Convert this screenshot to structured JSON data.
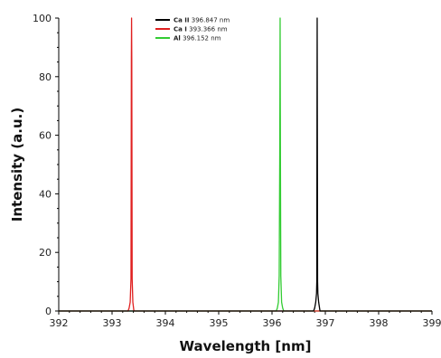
{
  "chart_data": {
    "type": "line",
    "xlabel": "Wavelength [nm]",
    "ylabel": "Intensity (a.u.)",
    "xlim": [
      392,
      399
    ],
    "ylim": [
      0,
      100
    ],
    "xticks": [
      "392",
      "393",
      "394",
      "395",
      "396",
      "397",
      "398",
      "399"
    ],
    "yticks": [
      "0",
      "20",
      "40",
      "60",
      "80",
      "100"
    ],
    "grid": false,
    "legend_position": "top-center",
    "series": [
      {
        "name": "Ca II",
        "label_value": "396.847 nm",
        "color": "#000000",
        "x": [
          392.0,
          396.78,
          396.8,
          396.82,
          396.835,
          396.84,
          396.845,
          396.847,
          396.849,
          396.855,
          396.86,
          396.875,
          396.9,
          399.0
        ],
        "y": [
          0,
          0,
          1,
          3,
          6,
          10,
          80,
          100,
          80,
          10,
          6,
          3,
          0,
          0
        ]
      },
      {
        "name": "Ca I",
        "label_value": "393.366 nm",
        "color": "#e02020",
        "x": [
          392.0,
          393.3,
          393.32,
          393.34,
          393.355,
          393.362,
          393.366,
          393.37,
          393.377,
          393.39,
          393.41,
          399.0
        ],
        "y": [
          0,
          0,
          1,
          3,
          11,
          86,
          100,
          86,
          11,
          3,
          0,
          0
        ]
      },
      {
        "name": "Al",
        "label_value": "396.152 nm",
        "color": "#33cc33",
        "x": [
          392.0,
          396.08,
          396.1,
          396.12,
          396.135,
          396.145,
          396.152,
          396.158,
          396.165,
          396.18,
          396.2,
          396.22,
          399.0
        ],
        "y": [
          0,
          0,
          1,
          3,
          12,
          53,
          100,
          53,
          12,
          3,
          1,
          0,
          0
        ]
      }
    ]
  }
}
